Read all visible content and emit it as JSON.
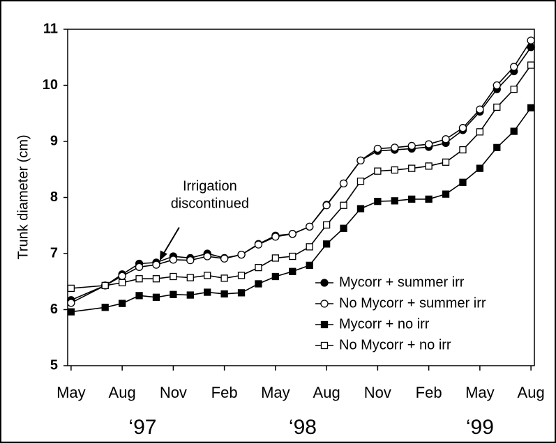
{
  "chart_data": {
    "type": "line",
    "y_label": "Trunk diameter (cm)",
    "x": [
      0,
      2,
      3,
      4,
      5,
      6,
      7,
      8,
      9,
      10,
      11,
      12,
      13,
      14,
      15,
      16,
      17,
      18,
      19,
      20,
      21,
      22,
      23,
      24,
      25,
      26,
      27
    ],
    "series": [
      {
        "name": "Mycorr + summer irr",
        "color": "#000000",
        "marker": "circle",
        "filled": true,
        "values": [
          6.17,
          6.43,
          6.63,
          6.82,
          6.84,
          6.95,
          6.92,
          7.0,
          6.92,
          6.98,
          7.17,
          7.32,
          7.35,
          7.48,
          7.87,
          8.25,
          8.66,
          8.83,
          8.85,
          8.87,
          8.9,
          8.97,
          9.2,
          9.53,
          9.93,
          10.25,
          10.68
        ]
      },
      {
        "name": "No Mycorr + summer irr",
        "color": "#000000",
        "marker": "circle",
        "filled": false,
        "values": [
          6.12,
          6.43,
          6.6,
          6.76,
          6.8,
          6.89,
          6.88,
          6.95,
          6.91,
          6.98,
          7.16,
          7.3,
          7.35,
          7.48,
          7.86,
          8.25,
          8.66,
          8.87,
          8.89,
          8.92,
          8.95,
          9.04,
          9.24,
          9.57,
          10.0,
          10.33,
          10.8
        ]
      },
      {
        "name": "Mycorr + no irr",
        "color": "#000000",
        "marker": "square",
        "filled": true,
        "values": [
          5.96,
          6.04,
          6.11,
          6.25,
          6.22,
          6.27,
          6.26,
          6.31,
          6.28,
          6.3,
          6.46,
          6.59,
          6.68,
          6.79,
          7.17,
          7.45,
          7.8,
          7.93,
          7.94,
          7.97,
          7.97,
          8.06,
          8.27,
          8.52,
          8.89,
          9.18,
          9.6
        ]
      },
      {
        "name": "No Mycorr + no irr",
        "color": "#000000",
        "marker": "square",
        "filled": false,
        "values": [
          6.38,
          6.43,
          6.48,
          6.55,
          6.55,
          6.59,
          6.57,
          6.61,
          6.56,
          6.61,
          6.75,
          6.92,
          6.95,
          7.12,
          7.51,
          7.86,
          8.29,
          8.47,
          8.49,
          8.52,
          8.56,
          8.63,
          8.85,
          9.17,
          9.61,
          9.93,
          10.36
        ]
      }
    ],
    "xlim": [
      -0.2,
      27.2
    ],
    "xticks": [
      {
        "value": 0,
        "label": "May"
      },
      {
        "value": 3,
        "label": "Aug"
      },
      {
        "value": 6,
        "label": "Nov"
      },
      {
        "value": 9,
        "label": "Feb"
      },
      {
        "value": 12,
        "label": "May"
      },
      {
        "value": 15,
        "label": "Aug"
      },
      {
        "value": 18,
        "label": "Nov"
      },
      {
        "value": 21,
        "label": "Feb"
      },
      {
        "value": 24,
        "label": "May"
      },
      {
        "value": 27,
        "label": "Aug"
      }
    ],
    "year_ticks": [
      {
        "value": 4.2,
        "label": "‘97"
      },
      {
        "value": 13.6,
        "label": "‘98"
      },
      {
        "value": 24,
        "label": "‘99"
      }
    ],
    "ylim": [
      5,
      11
    ],
    "yticks": [
      5,
      6,
      7,
      8,
      9,
      10,
      11
    ],
    "grid": false,
    "legend": "lower right",
    "annotation": {
      "lines": [
        "Irrigation",
        "discontinued"
      ],
      "x": 5.2,
      "y": 6.87
    }
  }
}
